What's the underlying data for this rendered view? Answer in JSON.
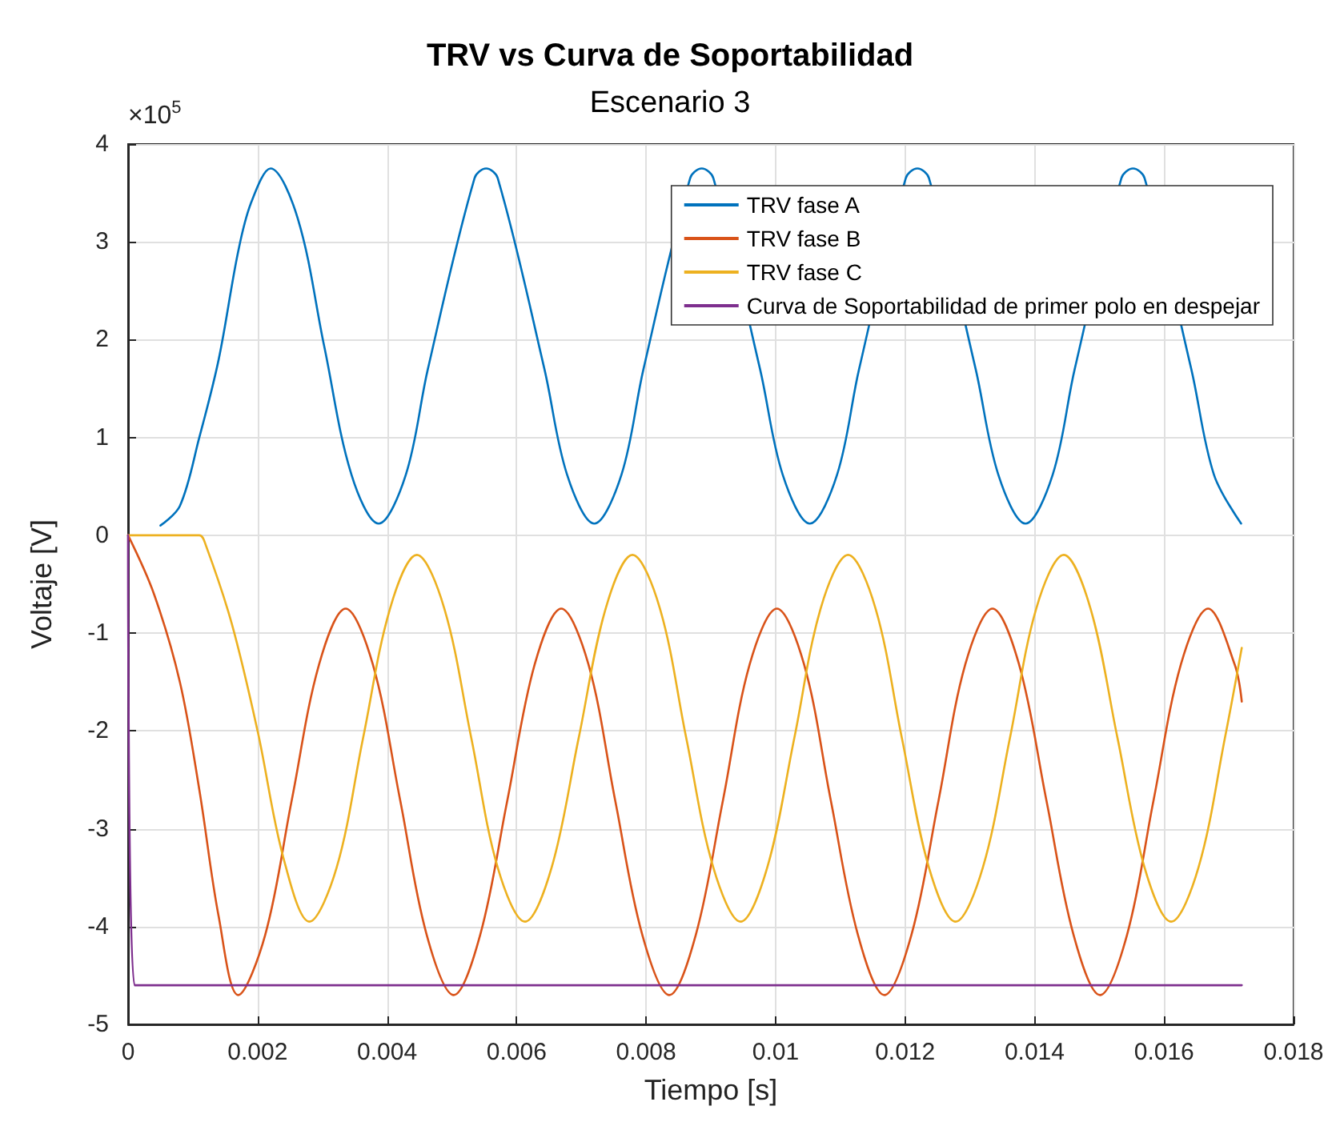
{
  "chart_data": {
    "type": "line",
    "title": "TRV vs Curva de Soportabilidad",
    "subtitle": "Escenario 3",
    "xlabel": "Tiempo [s]",
    "ylabel": "Voltaje [V]",
    "annotations": [
      "×10$^{5}$"
    ],
    "xlim": [
      0,
      0.018
    ],
    "xticks": [
      0,
      0.002,
      0.004,
      0.006,
      0.008,
      0.01,
      0.012,
      0.014,
      0.016,
      0.018
    ],
    "ylim": [
      -5,
      4
    ],
    "yticks": [
      -5,
      -4,
      -3,
      -2,
      -1,
      0,
      1,
      2,
      3,
      4
    ],
    "grid": true,
    "legend": "top right",
    "line_style": "solid",
    "marker": "none",
    "series": [
      {
        "name": "TRV fase A",
        "color": "#0072bd",
        "x": [
          0.0005,
          0.0008,
          0.0011,
          0.0014,
          0.0017,
          0.0019,
          0.0022,
          0.00262,
          0.00303,
          0.00345,
          0.00387,
          0.00429,
          0.00463,
          0.00535,
          0.00553,
          0.00571,
          0.00643,
          0.00678,
          0.0072,
          0.00762,
          0.00796,
          0.00868,
          0.00886,
          0.00904,
          0.00976,
          0.01011,
          0.01053,
          0.01095,
          0.01129,
          0.01201,
          0.01219,
          0.01237,
          0.01309,
          0.01344,
          0.01386,
          0.01428,
          0.01462,
          0.01534,
          0.01552,
          0.0157,
          0.01642,
          0.01677,
          0.01719
        ],
        "values": [
          0.1,
          0.3,
          1.0,
          1.8,
          2.9,
          3.4,
          3.75,
          3.24,
          1.93,
          0.62,
          0.12,
          0.62,
          1.7,
          3.65,
          3.75,
          3.65,
          1.7,
          0.62,
          0.12,
          0.62,
          1.7,
          3.65,
          3.75,
          3.65,
          1.7,
          0.62,
          0.12,
          0.62,
          1.7,
          3.65,
          3.75,
          3.65,
          1.7,
          0.62,
          0.12,
          0.62,
          1.7,
          3.65,
          3.75,
          3.65,
          1.7,
          0.62,
          0.12
        ]
      },
      {
        "name": "TRV fase B",
        "color": "#d95319",
        "x": [
          0,
          0.0004,
          0.0008,
          0.0011,
          0.0014,
          0.0017,
          0.00212,
          0.00253,
          0.00295,
          0.00336,
          0.00378,
          0.0042,
          0.00461,
          0.00503,
          0.00544,
          0.00586,
          0.00628,
          0.00669,
          0.00711,
          0.00752,
          0.00794,
          0.00836,
          0.00877,
          0.00919,
          0.0096,
          0.01002,
          0.01044,
          0.01085,
          0.01127,
          0.01168,
          0.0121,
          0.01252,
          0.01293,
          0.01335,
          0.01376,
          0.01418,
          0.0146,
          0.01501,
          0.01543,
          0.01584,
          0.01626,
          0.01668,
          0.01709,
          0.0172
        ],
        "values": [
          0,
          -0.6,
          -1.5,
          -2.6,
          -3.9,
          -4.7,
          -4.08,
          -2.7,
          -1.32,
          -0.75,
          -1.32,
          -2.7,
          -4.08,
          -4.7,
          -4.08,
          -2.7,
          -1.32,
          -0.75,
          -1.32,
          -2.7,
          -4.08,
          -4.7,
          -4.08,
          -2.7,
          -1.32,
          -0.75,
          -1.32,
          -2.7,
          -4.08,
          -4.7,
          -4.08,
          -2.7,
          -1.32,
          -0.75,
          -1.32,
          -2.7,
          -4.08,
          -4.7,
          -4.08,
          -2.7,
          -1.32,
          -0.75,
          -1.32,
          -1.7
        ]
      },
      {
        "name": "TRV fase C",
        "color": "#edb120",
        "x": [
          0,
          0.0011,
          0.0012,
          0.0016,
          0.002,
          0.0024,
          0.0028,
          0.00322,
          0.00363,
          0.00405,
          0.00446,
          0.00488,
          0.0053,
          0.00571,
          0.00613,
          0.00654,
          0.00696,
          0.00738,
          0.00779,
          0.00821,
          0.00862,
          0.00904,
          0.00946,
          0.00987,
          0.01029,
          0.0107,
          0.01112,
          0.01154,
          0.01195,
          0.01237,
          0.01278,
          0.0132,
          0.01362,
          0.01403,
          0.01445,
          0.01486,
          0.01528,
          0.0157,
          0.01611,
          0.01653,
          0.01694,
          0.0172
        ],
        "values": [
          0,
          0,
          -0.1,
          -0.9,
          -2.0,
          -3.3,
          -3.95,
          -3.4,
          -2.07,
          -0.74,
          -0.2,
          -0.74,
          -2.07,
          -3.4,
          -3.95,
          -3.4,
          -2.07,
          -0.74,
          -0.2,
          -0.74,
          -2.07,
          -3.4,
          -3.95,
          -3.4,
          -2.07,
          -0.74,
          -0.2,
          -0.74,
          -2.07,
          -3.4,
          -3.95,
          -3.4,
          -2.07,
          -0.74,
          -0.2,
          -0.74,
          -2.07,
          -3.4,
          -3.95,
          -3.4,
          -2.07,
          -1.15
        ]
      },
      {
        "name": "Curva de Soportabilidad de primer polo en despejar",
        "color": "#7e2f8e",
        "x": [
          0,
          0.0001,
          0.0172
        ],
        "values": [
          0,
          -4.6,
          -4.6
        ]
      }
    ]
  }
}
